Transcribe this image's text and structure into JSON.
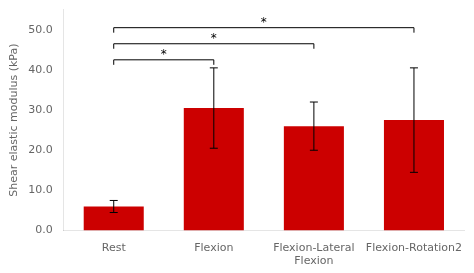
{
  "chart_data": {
    "type": "bar",
    "categories": [
      "Rest",
      "Flexion",
      "Flexion-Lateral\nFlexion",
      "Flexion-Rotation2"
    ],
    "values": [
      6.0,
      30.5,
      26.0,
      27.5
    ],
    "errors": [
      1.5,
      10.0,
      6.0,
      13.0
    ],
    "color": "#CC0000",
    "ylabel": "Shear elastic modulus (kPa)",
    "ylim": [
      0,
      55
    ],
    "yticks": [
      {
        "value": 0.0,
        "label": "0.0"
      },
      {
        "value": 10.0,
        "label": "10.0"
      },
      {
        "value": 20.0,
        "label": "20.0"
      },
      {
        "value": 30.0,
        "label": "30.0"
      },
      {
        "value": 40.0,
        "label": "40.0"
      },
      {
        "value": 50.0,
        "label": "50.0"
      }
    ],
    "annotations": [
      {
        "from": "Rest",
        "to": "Flexion",
        "y": 42.5,
        "label": "*"
      },
      {
        "from": "Rest",
        "to": "Flexion-Lateral\nFlexion",
        "y": 46.5,
        "label": "*"
      },
      {
        "from": "Rest",
        "to": "Flexion-Rotation2",
        "y": 50.5,
        "label": "*"
      }
    ],
    "grid": false
  }
}
